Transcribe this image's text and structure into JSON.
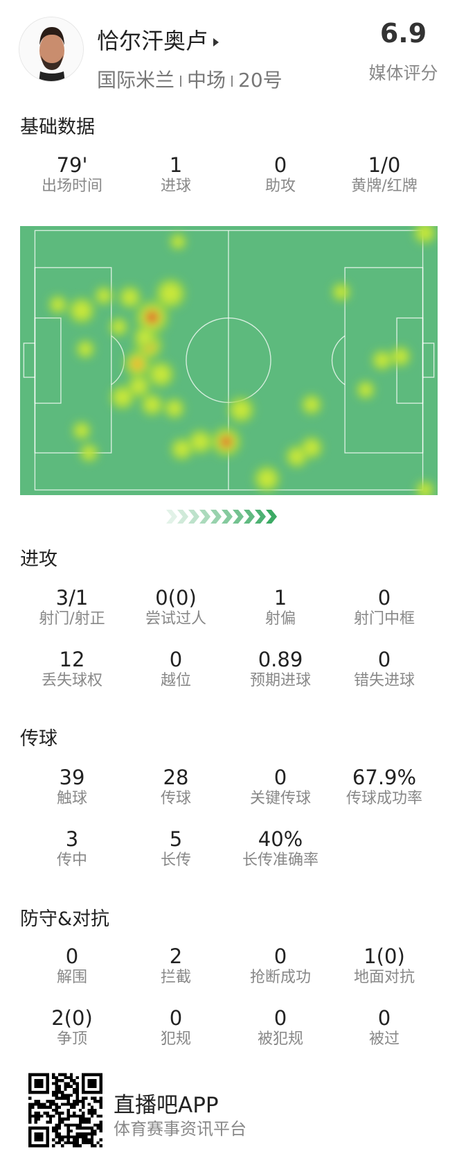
{
  "player": {
    "name": "恰尔汗奥卢",
    "team": "国际米兰",
    "position": "中场",
    "number": "20号",
    "rating": "6.9",
    "rating_label": "媒体评分"
  },
  "sections": {
    "basic": {
      "title": "基础数据",
      "stats": [
        {
          "value": "79'",
          "label": "出场时间"
        },
        {
          "value": "1",
          "label": "进球"
        },
        {
          "value": "0",
          "label": "助攻"
        },
        {
          "value": "1/0",
          "label": "黄牌/红牌"
        }
      ]
    },
    "attack": {
      "title": "进攻",
      "stats": [
        {
          "value": "3/1",
          "label": "射门/射正"
        },
        {
          "value": "0(0)",
          "label": "尝试过人"
        },
        {
          "value": "1",
          "label": "射偏"
        },
        {
          "value": "0",
          "label": "射门中框"
        },
        {
          "value": "12",
          "label": "丢失球权"
        },
        {
          "value": "0",
          "label": "越位"
        },
        {
          "value": "0.89",
          "label": "预期进球"
        },
        {
          "value": "0",
          "label": "错失进球"
        }
      ]
    },
    "passing": {
      "title": "传球",
      "stats": [
        {
          "value": "39",
          "label": "触球"
        },
        {
          "value": "28",
          "label": "传球"
        },
        {
          "value": "0",
          "label": "关键传球"
        },
        {
          "value": "67.9%",
          "label": "传球成功率"
        },
        {
          "value": "3",
          "label": "传中"
        },
        {
          "value": "5",
          "label": "长传"
        },
        {
          "value": "40%",
          "label": "长传准确率"
        }
      ]
    },
    "defense": {
      "title": "防守&对抗",
      "stats": [
        {
          "value": "0",
          "label": "解围"
        },
        {
          "value": "2",
          "label": "拦截"
        },
        {
          "value": "0",
          "label": "抢断成功"
        },
        {
          "value": "1(0)",
          "label": "地面对抗"
        },
        {
          "value": "2(0)",
          "label": "争顶"
        },
        {
          "value": "0",
          "label": "犯规"
        },
        {
          "value": "0",
          "label": "被犯规"
        },
        {
          "value": "0",
          "label": "被过"
        }
      ]
    }
  },
  "heatmap": {
    "pitch_color": "#5dba7d",
    "attack_direction_icon": "chevrons-right-icon"
  },
  "footer": {
    "app_name": "直播吧APP",
    "slogan": "体育赛事资讯平台",
    "qr_icon": "qr-code-icon"
  }
}
